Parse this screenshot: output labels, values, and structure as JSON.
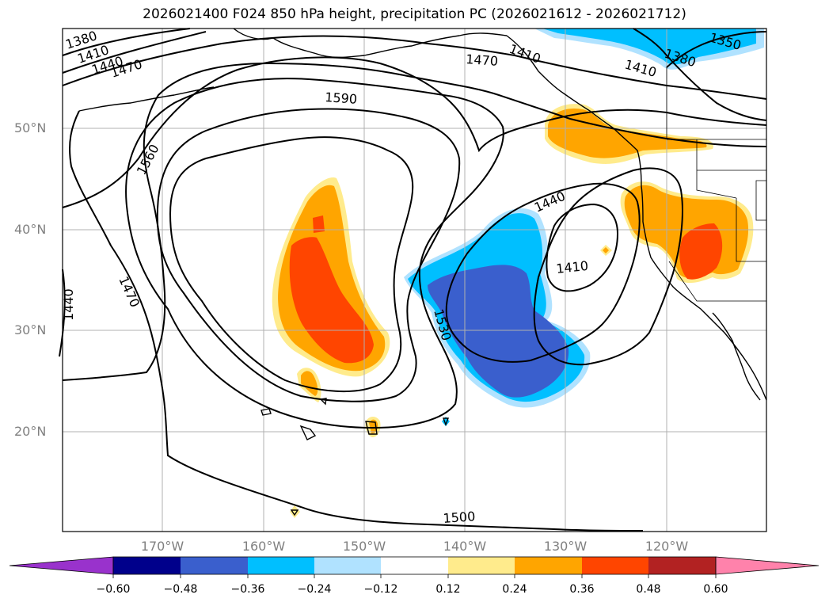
{
  "title": "2026021400 F024 850 hPa height, precipitation PC (2026021612 - 2026021712)",
  "lat_labels": [
    "50°N",
    "40°N",
    "30°N",
    "20°N"
  ],
  "lon_labels": [
    "170°W",
    "160°W",
    "150°W",
    "140°W",
    "130°W",
    "120°W"
  ],
  "contour_labels": [
    "1380",
    "1410",
    "1440",
    "1470",
    "1590",
    "1470",
    "1410",
    "1350",
    "1380",
    "1440",
    "1410",
    "1560",
    "1470",
    "1440",
    "1530",
    "1500",
    "1410"
  ],
  "colorbar": {
    "tick_labels": [
      "−0.60",
      "−0.48",
      "−0.36",
      "−0.24",
      "−0.12",
      "0.12",
      "0.24",
      "0.36",
      "0.48",
      "0.60"
    ],
    "colors": [
      "#9932cc",
      "#00008b",
      "#3a5fcd",
      "#00bfff",
      "#b0e2ff",
      "#ffffff",
      "#ffeb8c",
      "#ffa500",
      "#ff4500",
      "#b22222",
      "#ff82ab"
    ]
  },
  "colors": {
    "neg_light": "#b0e2ff",
    "neg_mid": "#00bfff",
    "neg_dark": "#3a5fcd",
    "pos_light": "#ffeb8c",
    "pos_mid": "#ffa500",
    "pos_dark": "#ff4500"
  }
}
